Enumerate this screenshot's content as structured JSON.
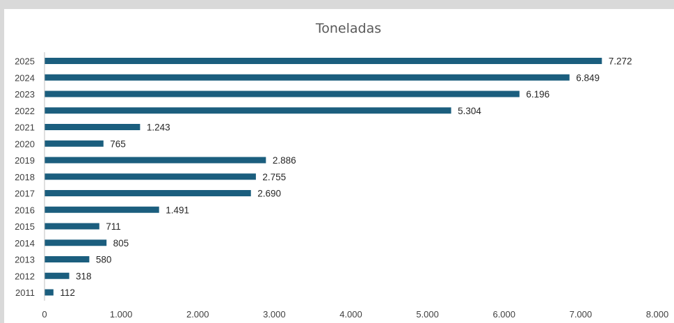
{
  "chart_data": {
    "type": "bar",
    "orientation": "horizontal",
    "title": "Toneladas",
    "categories": [
      "2025",
      "2024",
      "2023",
      "2022",
      "2021",
      "2020",
      "2019",
      "2018",
      "2017",
      "2016",
      "2015",
      "2014",
      "2013",
      "2012",
      "2011"
    ],
    "values": [
      7272,
      6849,
      6196,
      5304,
      1243,
      765,
      2886,
      2755,
      2690,
      1491,
      711,
      805,
      580,
      318,
      112
    ],
    "data_labels": [
      "7.272",
      "6.849",
      "6.196",
      "5.304",
      "1.243",
      "765",
      "2.886",
      "2.755",
      "2.690",
      "1.491",
      "711",
      "805",
      "580",
      "318",
      "112"
    ],
    "x_ticks": [
      0,
      1000,
      2000,
      3000,
      4000,
      5000,
      6000,
      7000,
      8000
    ],
    "x_tick_labels": [
      "0",
      "1.000",
      "2.000",
      "3.000",
      "4.000",
      "5.000",
      "6.000",
      "7.000",
      "8.000"
    ],
    "xlim": [
      0,
      8000
    ],
    "xlabel": "",
    "ylabel": "",
    "grid": false,
    "legend": "none",
    "bar_color": "#1b5e7e",
    "axis_color": "#bfbfbf"
  }
}
